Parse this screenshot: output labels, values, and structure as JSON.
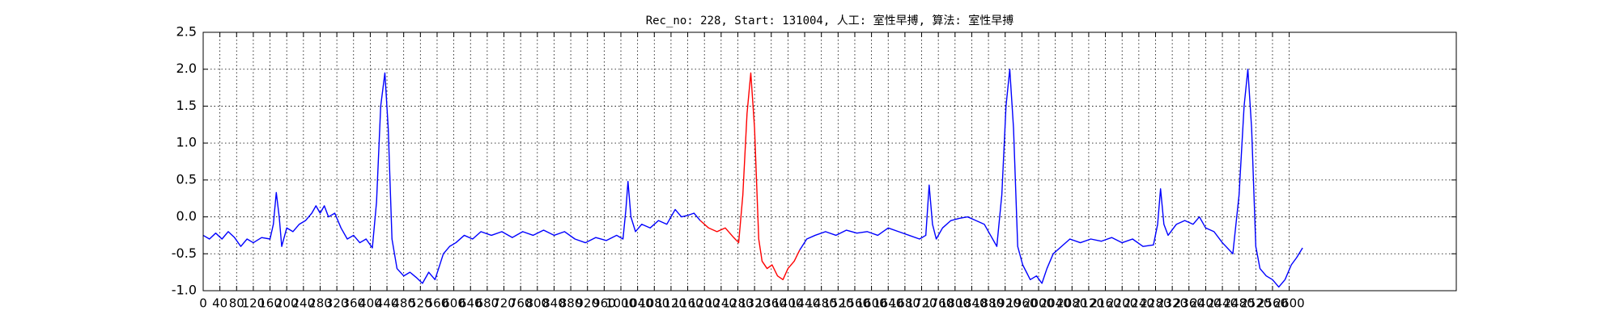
{
  "chart_data": {
    "type": "line",
    "title": "Rec_no: 228, Start: 131004, 人工: 室性早搏, 算法: 室性早搏",
    "xlim": [
      0,
      3000
    ],
    "ylim": [
      -1,
      2.5
    ],
    "xticks": [
      0,
      40,
      80,
      120,
      160,
      200,
      240,
      280,
      320,
      360,
      400,
      440,
      480,
      520,
      560,
      600,
      640,
      680,
      720,
      760,
      800,
      840,
      880,
      920,
      960,
      1000,
      1040,
      1080,
      1120,
      1160,
      1200,
      1240,
      1280,
      1320,
      1360,
      1400,
      1440,
      1480,
      1520,
      1560,
      1600,
      1640,
      1680,
      1720,
      1760,
      1800,
      1840,
      1880,
      1920,
      1960,
      2000,
      2040,
      2080,
      2120,
      2160,
      2200,
      2240,
      2280,
      2320,
      2360,
      2400,
      2440,
      2480,
      2520,
      2560,
      2600
    ],
    "yticks": [
      {
        "value": -1,
        "label": "-1.0"
      },
      -0.5,
      {
        "value": 0,
        "label": "0.0"
      },
      0.5,
      {
        "value": 1,
        "label": "1.0"
      },
      1.5,
      {
        "value": 2,
        "label": "2.0"
      },
      2.5
    ],
    "grid": true,
    "x": [
      0,
      15,
      30,
      45,
      60,
      75,
      90,
      105,
      120,
      140,
      160,
      168,
      175,
      182,
      188,
      200,
      215,
      230,
      245,
      260,
      270,
      280,
      290,
      300,
      315,
      330,
      345,
      360,
      375,
      390,
      405,
      415,
      425,
      435,
      443,
      452,
      464,
      480,
      495,
      510,
      525,
      540,
      555,
      575,
      590,
      605,
      625,
      645,
      665,
      690,
      715,
      740,
      765,
      790,
      815,
      840,
      865,
      890,
      915,
      940,
      965,
      990,
      1005,
      1012,
      1017,
      1024,
      1035,
      1050,
      1070,
      1090,
      1110,
      1130,
      1145,
      1160,
      1175,
      1190,
      1210,
      1230,
      1250,
      1270,
      1282,
      1292,
      1302,
      1311,
      1320,
      1330,
      1338,
      1350,
      1362,
      1375,
      1388,
      1400,
      1415,
      1428,
      1445,
      1465,
      1490,
      1515,
      1540,
      1565,
      1590,
      1615,
      1640,
      1665,
      1690,
      1715,
      1730,
      1738,
      1746,
      1755,
      1770,
      1790,
      1810,
      1830,
      1850,
      1870,
      1885,
      1900,
      1912,
      1922,
      1931,
      1940,
      1950,
      1962,
      1980,
      1995,
      2008,
      2020,
      2035,
      2055,
      2075,
      2100,
      2125,
      2150,
      2175,
      2200,
      2225,
      2250,
      2275,
      2285,
      2292,
      2300,
      2310,
      2330,
      2350,
      2370,
      2385,
      2400,
      2420,
      2440,
      2465,
      2480,
      2492,
      2501,
      2510,
      2520,
      2530,
      2545,
      2560,
      2575,
      2590,
      2605,
      2618,
      2632
    ],
    "series": [
      {
        "color": "#0000ff",
        "values": [
          -0.25,
          -0.3,
          -0.22,
          -0.3,
          -0.2,
          -0.28,
          -0.4,
          -0.3,
          -0.35,
          -0.28,
          -0.3,
          -0.1,
          0.33,
          0.0,
          -0.4,
          -0.15,
          -0.2,
          -0.1,
          -0.05,
          0.05,
          0.15,
          0.05,
          0.15,
          0.0,
          0.05,
          -0.15,
          -0.3,
          -0.25,
          -0.35,
          -0.3,
          -0.42,
          0.2,
          1.5,
          1.95,
          1.2,
          -0.3,
          -0.7,
          -0.8,
          -0.75,
          -0.82,
          -0.9,
          -0.75,
          -0.85,
          -0.5,
          -0.4,
          -0.35,
          -0.25,
          -0.3,
          -0.2,
          -0.25,
          -0.2,
          -0.28,
          -0.2,
          -0.25,
          -0.18,
          -0.25,
          -0.2,
          -0.3,
          -0.35,
          -0.28,
          -0.32,
          -0.25,
          -0.3,
          0.1,
          0.48,
          0.0,
          -0.2,
          -0.1,
          -0.15,
          -0.05,
          -0.1,
          0.1,
          0.0,
          0.02,
          0.05,
          -0.05,
          null,
          null,
          null,
          null,
          null,
          null,
          null,
          null,
          null,
          null,
          null,
          null,
          null,
          null,
          null,
          null,
          null,
          -0.45,
          -0.3,
          -0.25,
          -0.2,
          -0.25,
          -0.18,
          -0.22,
          -0.2,
          -0.25,
          -0.15,
          -0.2,
          -0.25,
          -0.3,
          -0.25,
          0.43,
          -0.1,
          -0.3,
          -0.15,
          -0.05,
          -0.02,
          0.0,
          -0.05,
          -0.1,
          -0.25,
          -0.4,
          0.3,
          1.5,
          2.0,
          1.2,
          -0.4,
          -0.65,
          -0.85,
          -0.8,
          -0.9,
          -0.7,
          -0.5,
          -0.4,
          -0.3,
          -0.35,
          -0.3,
          -0.33,
          -0.28,
          -0.35,
          -0.3,
          -0.4,
          -0.38,
          -0.1,
          0.38,
          -0.1,
          -0.25,
          -0.1,
          -0.05,
          -0.1,
          0.0,
          -0.15,
          -0.2,
          -0.35,
          -0.5,
          0.3,
          1.5,
          2.0,
          1.2,
          -0.4,
          -0.7,
          -0.8,
          -0.85,
          -0.95,
          -0.85,
          -0.65,
          -0.55,
          -0.42
        ]
      },
      {
        "color": "#ff0000",
        "values": [
          null,
          null,
          null,
          null,
          null,
          null,
          null,
          null,
          null,
          null,
          null,
          null,
          null,
          null,
          null,
          null,
          null,
          null,
          null,
          null,
          null,
          null,
          null,
          null,
          null,
          null,
          null,
          null,
          null,
          null,
          null,
          null,
          null,
          null,
          null,
          null,
          null,
          null,
          null,
          null,
          null,
          null,
          null,
          null,
          null,
          null,
          null,
          null,
          null,
          null,
          null,
          null,
          null,
          null,
          null,
          null,
          null,
          null,
          null,
          null,
          null,
          null,
          null,
          null,
          null,
          null,
          null,
          null,
          null,
          null,
          null,
          null,
          null,
          null,
          null,
          -0.05,
          -0.15,
          -0.2,
          -0.15,
          -0.28,
          -0.35,
          0.3,
          1.4,
          1.95,
          1.2,
          -0.3,
          -0.6,
          -0.7,
          -0.65,
          -0.8,
          -0.85,
          -0.7,
          -0.6,
          -0.45,
          null,
          null,
          null,
          null,
          null,
          null,
          null,
          null,
          null,
          null,
          null,
          null,
          null,
          null,
          null,
          null,
          null,
          null,
          null,
          null,
          null,
          null,
          null,
          null,
          null,
          null,
          null,
          null,
          null,
          null,
          null,
          null,
          null,
          null,
          null,
          null,
          null,
          null,
          null,
          null,
          null,
          null,
          null,
          null,
          null,
          null,
          null,
          null,
          null,
          null,
          null,
          null,
          null,
          null,
          null,
          null,
          null,
          null,
          null,
          null,
          null,
          null,
          null,
          null,
          null,
          null,
          null,
          null,
          null,
          null
        ]
      }
    ]
  }
}
